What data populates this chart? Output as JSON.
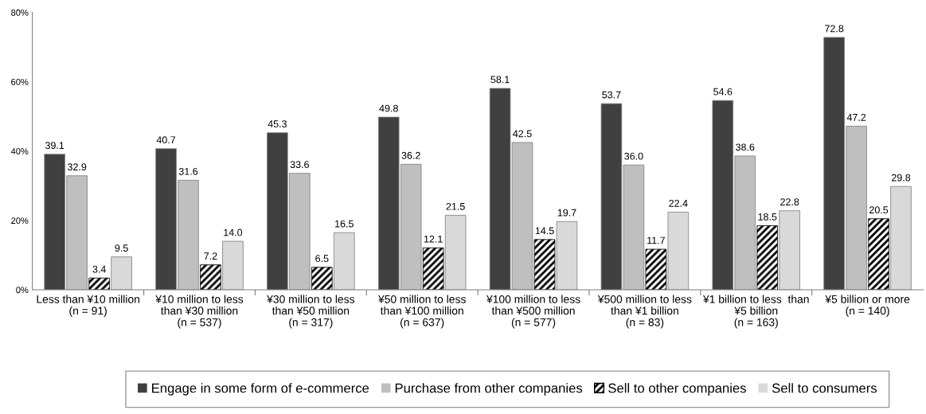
{
  "chart_data": {
    "type": "bar",
    "categories": [
      "Less than ¥10 million\n(n = 91)",
      "¥10 million to less\nthan ¥30 million\n(n = 537)",
      "¥30 million to less\nthan ¥50 million\n(n = 317)",
      "¥50 million to less\nthan ¥100 million\n(n = 637)",
      "¥100 million to less\nthan ¥500 million\n(n = 577)",
      "¥500 million to less\nthan ¥1 billion\n(n = 83)",
      "¥1 billion to less  than\n¥5 billion\n(n = 163)",
      "¥5 billion or more\n(n = 140)"
    ],
    "series": [
      {
        "name": "Engage in some form of e-commerce",
        "color": "#404040",
        "values": [
          39.1,
          40.7,
          45.3,
          49.8,
          58.1,
          53.7,
          54.6,
          72.8
        ],
        "value_labels": [
          "39.1",
          "40.7",
          "45.3",
          "49.8",
          "58.1",
          "53.7",
          "54.6",
          "72.8"
        ]
      },
      {
        "name": "Purchase from other companies",
        "color": "#bfbfbf",
        "values": [
          32.9,
          31.6,
          33.6,
          36.2,
          42.5,
          36.0,
          38.6,
          47.2
        ],
        "value_labels": [
          "32.9",
          "31.6",
          "33.6",
          "36.2",
          "42.5",
          "36.0",
          "38.6",
          "47.2"
        ]
      },
      {
        "name": "Sell to other companies",
        "color": "#000000",
        "values": [
          3.4,
          7.2,
          6.5,
          12.1,
          14.5,
          11.7,
          18.5,
          20.5
        ],
        "value_labels": [
          "3.4",
          "7.2",
          "6.5",
          "12.1",
          "14.5",
          "11.7",
          "18.5",
          "20.5"
        ]
      },
      {
        "name": "Sell to consumers",
        "color": "#d9d9d9",
        "values": [
          9.5,
          14.0,
          16.5,
          21.5,
          19.7,
          22.4,
          22.8,
          29.8
        ],
        "value_labels": [
          "9.5",
          "14.0",
          "16.5",
          "21.5",
          "19.7",
          "22.4",
          "22.8",
          "29.8"
        ]
      }
    ],
    "ylim": [
      0,
      80
    ],
    "yticks": [
      {
        "value": 0,
        "label": "0%"
      },
      {
        "value": 20,
        "label": "20%"
      },
      {
        "value": 40,
        "label": "40%"
      },
      {
        "value": 60,
        "label": "60%"
      },
      {
        "value": 80,
        "label": "80%"
      }
    ],
    "legend": "bottom",
    "grid": false
  }
}
